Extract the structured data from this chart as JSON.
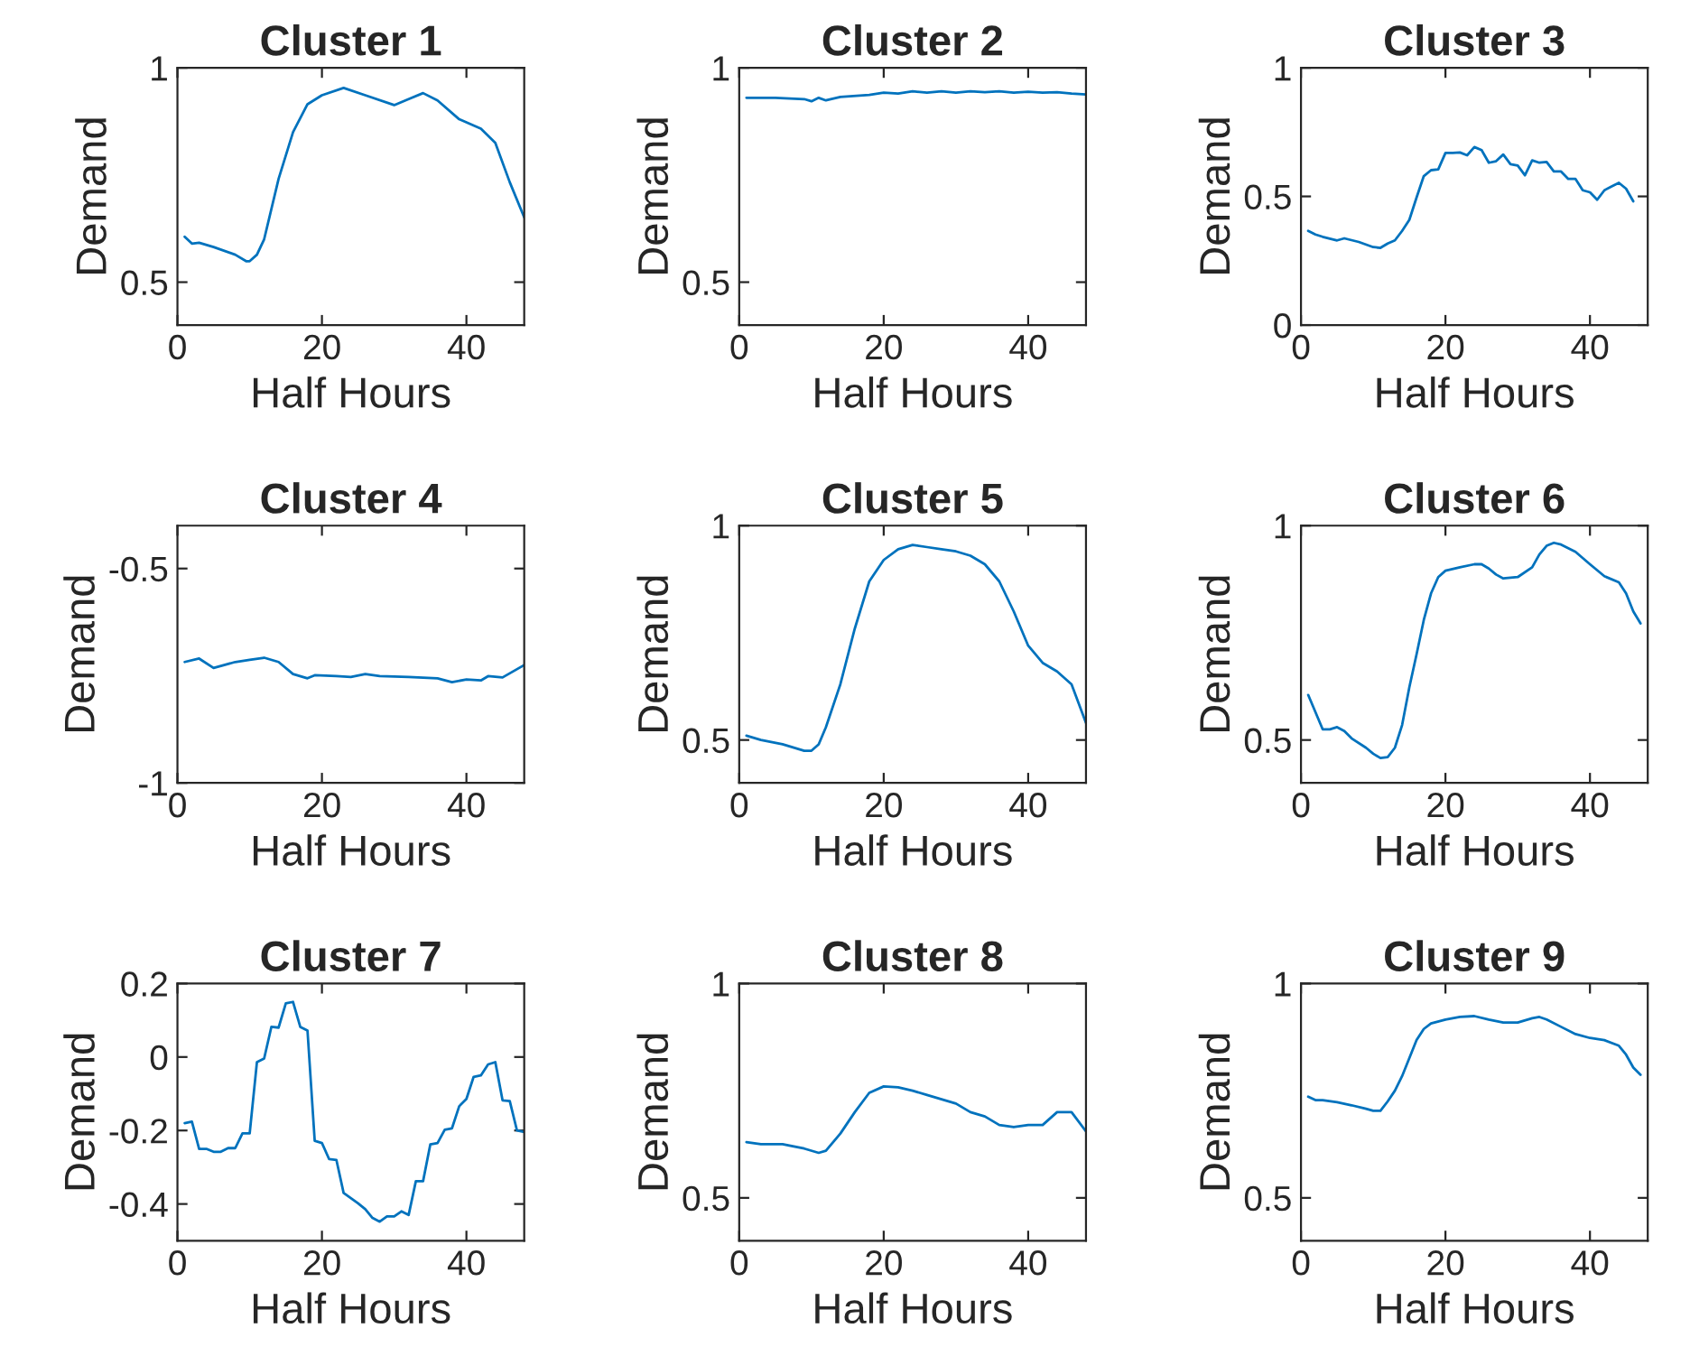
{
  "chart_data": [
    {
      "type": "line",
      "title": "Cluster 1",
      "xlabel": "Half Hours",
      "ylabel": "Demand",
      "xlim": [
        0,
        48
      ],
      "ylim": [
        0.4,
        1
      ],
      "xticks": [
        0,
        20,
        40
      ],
      "yticks": [
        0.5,
        1
      ],
      "grid": false,
      "series": [
        {
          "color": "#0072bd",
          "x": [
            1,
            2,
            3,
            5,
            8,
            9.5,
            10,
            11,
            12,
            14,
            16,
            18,
            20,
            23,
            26,
            30,
            32,
            34,
            36,
            39,
            42,
            44,
            46,
            48
          ],
          "values": [
            0.606,
            0.59,
            0.592,
            0.582,
            0.564,
            0.549,
            0.549,
            0.564,
            0.6,
            0.741,
            0.85,
            0.915,
            0.936,
            0.953,
            0.936,
            0.913,
            0.927,
            0.941,
            0.924,
            0.88,
            0.858,
            0.825,
            0.733,
            0.651
          ]
        }
      ]
    },
    {
      "type": "line",
      "title": "Cluster 2",
      "xlabel": "Half Hours",
      "ylabel": "Demand",
      "xlim": [
        0,
        48
      ],
      "ylim": [
        0.4,
        1
      ],
      "xticks": [
        0,
        20,
        40
      ],
      "yticks": [
        0.5,
        1
      ],
      "grid": false,
      "series": [
        {
          "color": "#0072bd",
          "x": [
            1,
            5,
            9,
            10,
            11,
            12,
            14,
            18,
            20,
            22,
            24,
            26,
            28,
            30,
            32,
            34,
            36,
            38,
            40,
            42,
            44,
            46,
            48
          ],
          "values": [
            0.93,
            0.93,
            0.927,
            0.922,
            0.93,
            0.924,
            0.932,
            0.937,
            0.942,
            0.94,
            0.945,
            0.942,
            0.945,
            0.942,
            0.945,
            0.943,
            0.945,
            0.942,
            0.944,
            0.942,
            0.943,
            0.94,
            0.938
          ]
        }
      ]
    },
    {
      "type": "line",
      "title": "Cluster 3",
      "xlabel": "Half Hours",
      "ylabel": "Demand",
      "xlim": [
        0,
        48
      ],
      "ylim": [
        0,
        1
      ],
      "xticks": [
        0,
        20,
        40
      ],
      "yticks": [
        0,
        0.5,
        1
      ],
      "grid": false,
      "series": [
        {
          "color": "#0072bd",
          "x": [
            1,
            2,
            3,
            5,
            6,
            8,
            10,
            11,
            12,
            13,
            14,
            15,
            16,
            17,
            18,
            19,
            20,
            21,
            22,
            23,
            24,
            25,
            26,
            27,
            28,
            29,
            30,
            31,
            32,
            33,
            34,
            35,
            36,
            37,
            38,
            39,
            40,
            41,
            42,
            43,
            44,
            45,
            46
          ],
          "values": [
            0.366,
            0.352,
            0.343,
            0.329,
            0.337,
            0.323,
            0.303,
            0.3,
            0.317,
            0.329,
            0.366,
            0.409,
            0.496,
            0.579,
            0.602,
            0.605,
            0.669,
            0.669,
            0.671,
            0.66,
            0.692,
            0.68,
            0.631,
            0.637,
            0.663,
            0.625,
            0.62,
            0.582,
            0.64,
            0.631,
            0.634,
            0.597,
            0.597,
            0.568,
            0.568,
            0.524,
            0.516,
            0.487,
            0.524,
            0.539,
            0.553,
            0.53,
            0.481
          ]
        }
      ]
    },
    {
      "type": "line",
      "title": "Cluster 4",
      "xlabel": "Half Hours",
      "ylabel": "Demand",
      "xlim": [
        0,
        48
      ],
      "ylim": [
        -1,
        -0.4
      ],
      "xticks": [
        0,
        20,
        40
      ],
      "yticks": [
        -1,
        -0.5
      ],
      "grid": false,
      "series": [
        {
          "color": "#0072bd",
          "x": [
            1,
            3,
            5,
            8,
            10,
            12,
            14,
            16,
            18,
            19,
            22,
            24,
            26,
            28,
            32,
            36,
            38,
            40,
            42,
            43,
            45,
            48
          ],
          "values": [
            -0.718,
            -0.71,
            -0.732,
            -0.718,
            -0.713,
            -0.708,
            -0.718,
            -0.746,
            -0.756,
            -0.749,
            -0.751,
            -0.753,
            -0.746,
            -0.751,
            -0.753,
            -0.756,
            -0.765,
            -0.759,
            -0.761,
            -0.751,
            -0.754,
            -0.725
          ]
        }
      ]
    },
    {
      "type": "line",
      "title": "Cluster 5",
      "xlabel": "Half Hours",
      "ylabel": "Demand",
      "xlim": [
        0,
        48
      ],
      "ylim": [
        0.4,
        1
      ],
      "xticks": [
        0,
        20,
        40
      ],
      "yticks": [
        0.5,
        1
      ],
      "grid": false,
      "series": [
        {
          "color": "#0072bd",
          "x": [
            1,
            3,
            6,
            9,
            10,
            11,
            12,
            14,
            16,
            18,
            20,
            22,
            24,
            26,
            28,
            30,
            32,
            34,
            36,
            38,
            40,
            42,
            44,
            46,
            48
          ],
          "values": [
            0.51,
            0.5,
            0.49,
            0.475,
            0.475,
            0.49,
            0.53,
            0.63,
            0.76,
            0.87,
            0.92,
            0.945,
            0.955,
            0.95,
            0.945,
            0.94,
            0.93,
            0.91,
            0.87,
            0.8,
            0.72,
            0.68,
            0.66,
            0.63,
            0.54
          ]
        }
      ]
    },
    {
      "type": "line",
      "title": "Cluster 6",
      "xlabel": "Half Hours",
      "ylabel": "Demand",
      "xlim": [
        0,
        48
      ],
      "ylim": [
        0.4,
        1
      ],
      "xticks": [
        0,
        20,
        40
      ],
      "yticks": [
        0.5,
        1
      ],
      "grid": false,
      "series": [
        {
          "color": "#0072bd",
          "x": [
            1,
            2,
            3,
            4,
            5,
            6,
            7,
            9,
            10,
            11,
            12,
            13,
            14,
            15,
            16,
            17,
            18,
            19,
            20,
            22,
            24,
            25,
            26,
            27,
            28,
            30,
            32,
            33,
            34,
            35,
            36,
            38,
            40,
            42,
            44,
            45,
            46,
            47
          ],
          "values": [
            0.605,
            0.565,
            0.525,
            0.525,
            0.53,
            0.521,
            0.504,
            0.482,
            0.468,
            0.458,
            0.46,
            0.482,
            0.535,
            0.623,
            0.7,
            0.78,
            0.842,
            0.88,
            0.895,
            0.903,
            0.91,
            0.91,
            0.9,
            0.886,
            0.877,
            0.88,
            0.903,
            0.933,
            0.953,
            0.96,
            0.956,
            0.939,
            0.91,
            0.882,
            0.868,
            0.842,
            0.8,
            0.772
          ]
        }
      ]
    },
    {
      "type": "line",
      "title": "Cluster 7",
      "xlabel": "Half Hours",
      "ylabel": "Demand",
      "xlim": [
        0,
        48
      ],
      "ylim": [
        -0.5,
        0.2
      ],
      "xticks": [
        0,
        20,
        40
      ],
      "yticks": [
        -0.4,
        -0.2,
        0,
        0.2
      ],
      "grid": false,
      "series": [
        {
          "color": "#0072bd",
          "x": [
            1,
            2,
            3,
            4,
            5,
            6,
            7,
            8,
            9,
            10,
            11,
            12,
            13,
            14,
            15,
            16,
            17,
            18,
            19,
            20,
            21,
            22,
            23,
            24,
            25,
            26,
            27,
            28,
            29,
            30,
            31,
            32,
            33,
            34,
            35,
            36,
            37,
            38,
            39,
            40,
            41,
            42,
            43,
            44,
            45,
            46,
            47,
            48
          ],
          "values": [
            -0.18,
            -0.176,
            -0.25,
            -0.25,
            -0.258,
            -0.258,
            -0.248,
            -0.248,
            -0.208,
            -0.208,
            -0.014,
            -0.004,
            0.082,
            0.08,
            0.146,
            0.15,
            0.082,
            0.072,
            -0.228,
            -0.234,
            -0.278,
            -0.28,
            -0.37,
            -0.384,
            -0.398,
            -0.414,
            -0.438,
            -0.448,
            -0.434,
            -0.434,
            -0.42,
            -0.43,
            -0.338,
            -0.338,
            -0.238,
            -0.234,
            -0.198,
            -0.194,
            -0.134,
            -0.114,
            -0.054,
            -0.05,
            -0.02,
            -0.014,
            -0.118,
            -0.12,
            -0.2,
            -0.204
          ]
        }
      ]
    },
    {
      "type": "line",
      "title": "Cluster 8",
      "xlabel": "Half Hours",
      "ylabel": "Demand",
      "xlim": [
        0,
        48
      ],
      "ylim": [
        0.4,
        1
      ],
      "xticks": [
        0,
        20,
        40
      ],
      "yticks": [
        0.5,
        1
      ],
      "grid": false,
      "series": [
        {
          "color": "#0072bd",
          "x": [
            1,
            3,
            6,
            9,
            11,
            12,
            14,
            16,
            18,
            20,
            22,
            24,
            26,
            28,
            30,
            32,
            34,
            36,
            38,
            40,
            42,
            44,
            46,
            48
          ],
          "values": [
            0.63,
            0.625,
            0.625,
            0.615,
            0.605,
            0.61,
            0.65,
            0.7,
            0.745,
            0.76,
            0.758,
            0.75,
            0.74,
            0.73,
            0.72,
            0.7,
            0.69,
            0.67,
            0.665,
            0.67,
            0.67,
            0.7,
            0.7,
            0.655
          ]
        }
      ]
    },
    {
      "type": "line",
      "title": "Cluster 9",
      "xlabel": "Half Hours",
      "ylabel": "Demand",
      "xlim": [
        0,
        48
      ],
      "ylim": [
        0.4,
        1
      ],
      "xticks": [
        0,
        20,
        40
      ],
      "yticks": [
        0.5,
        1
      ],
      "grid": false,
      "series": [
        {
          "color": "#0072bd",
          "x": [
            1,
            2,
            3,
            5,
            7,
            9,
            10,
            11,
            12,
            13,
            14,
            15,
            16,
            17,
            18,
            20,
            22,
            24,
            26,
            28,
            30,
            32,
            33,
            34,
            36,
            38,
            40,
            42,
            44,
            45,
            46,
            47
          ],
          "values": [
            0.736,
            0.728,
            0.728,
            0.723,
            0.716,
            0.708,
            0.703,
            0.703,
            0.725,
            0.75,
            0.784,
            0.826,
            0.868,
            0.894,
            0.907,
            0.916,
            0.922,
            0.924,
            0.916,
            0.909,
            0.909,
            0.919,
            0.922,
            0.916,
            0.899,
            0.882,
            0.873,
            0.868,
            0.855,
            0.834,
            0.804,
            0.787
          ]
        }
      ]
    }
  ]
}
